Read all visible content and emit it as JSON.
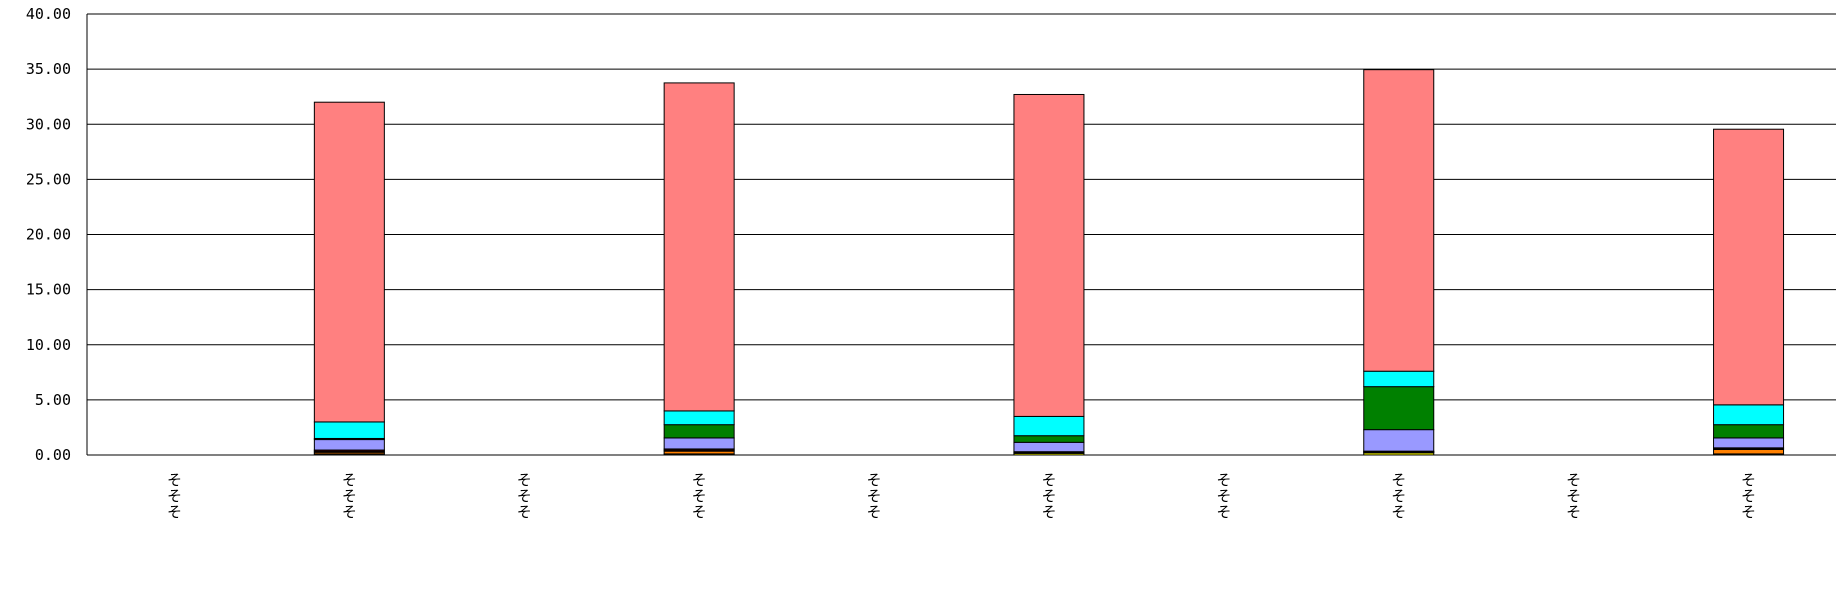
{
  "chart_data": {
    "type": "bar",
    "stacked": true,
    "title": "",
    "xlabel": "",
    "ylabel": "",
    "ylim": [
      0,
      40
    ],
    "yticks": [
      "0.00",
      "5.00",
      "10.00",
      "15.00",
      "20.00",
      "25.00",
      "30.00",
      "35.00",
      "40.00"
    ],
    "grid": true,
    "legend": "none",
    "categories": [
      "そそそ",
      "そそそ",
      "そそそ",
      "そそそ",
      "そそそ",
      "そそそ",
      "そそそ",
      "そそそ",
      "そそそ",
      "そそそ"
    ],
    "series": [
      {
        "color": "#FFFF00",
        "values": [
          0,
          0.1,
          0,
          0.1,
          0,
          0.15,
          0,
          0.2,
          0,
          0.1
        ]
      },
      {
        "color": "#FF8000",
        "values": [
          0,
          0.15,
          0,
          0.25,
          0,
          0.05,
          0,
          0.05,
          0,
          0.4
        ]
      },
      {
        "color": "#800000",
        "values": [
          0,
          0.1,
          0,
          0.1,
          0,
          0.05,
          0,
          0.05,
          0,
          0.1
        ]
      },
      {
        "color": "#FF0000",
        "values": [
          0,
          0.1,
          0,
          0.1,
          0,
          0.05,
          0,
          0.05,
          0,
          0.05
        ]
      },
      {
        "color": "#9999FF",
        "values": [
          0,
          0.95,
          0,
          1.0,
          0,
          0.85,
          0,
          1.95,
          0,
          0.9
        ]
      },
      {
        "color": "#008000",
        "values": [
          0,
          0.1,
          0,
          1.2,
          0,
          0.6,
          0,
          3.9,
          0,
          1.2
        ]
      },
      {
        "color": "#00FFFF",
        "values": [
          0,
          1.5,
          0,
          1.25,
          0,
          1.75,
          0,
          1.4,
          0,
          1.8
        ]
      },
      {
        "color": "#FF8080",
        "values": [
          0,
          29.0,
          0,
          29.75,
          0,
          29.2,
          0,
          27.35,
          0,
          25.0
        ]
      }
    ]
  }
}
